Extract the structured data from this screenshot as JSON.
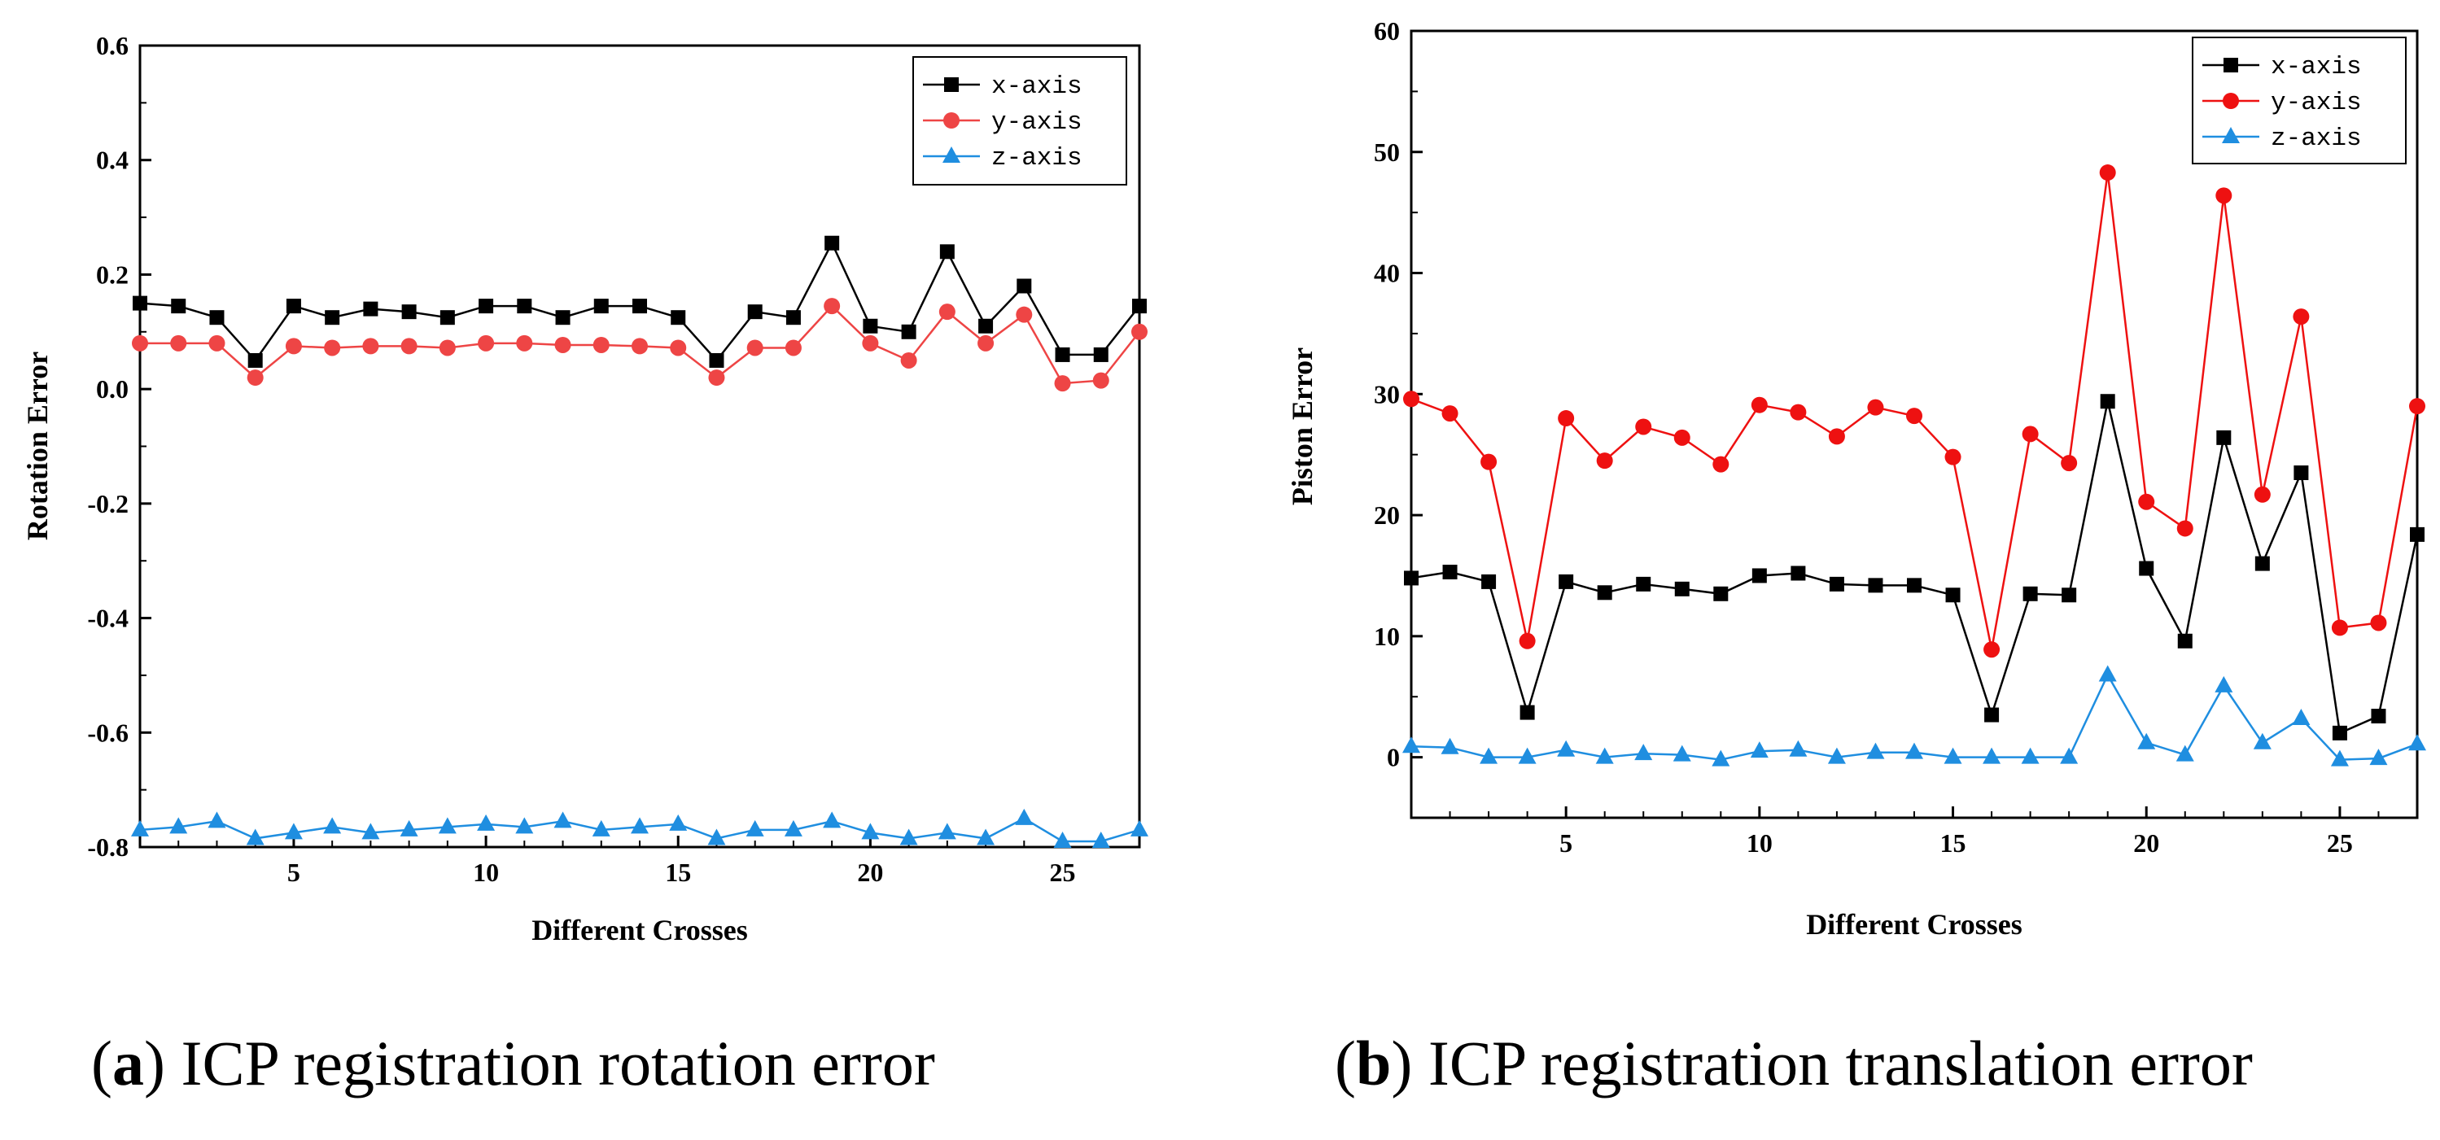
{
  "chart_data": [
    {
      "type": "line",
      "caption_letter": "a",
      "caption_text": "ICP registration rotation error",
      "xlabel": "Different Crosses",
      "ylabel": "Rotation Error",
      "xlim": [
        1,
        27
      ],
      "ylim": [
        -0.8,
        0.6
      ],
      "xticks": [
        5,
        10,
        15,
        20,
        25
      ],
      "yticks": [
        -0.8,
        -0.6,
        -0.4,
        -0.2,
        0.0,
        0.2,
        0.4,
        0.6
      ],
      "ytick_labels": [
        "-0.8",
        "-0.6",
        "-0.4",
        "-0.2",
        "0.0",
        "0.2",
        "0.4",
        "0.6"
      ],
      "legend_position": "top-right",
      "x": [
        1,
        2,
        3,
        4,
        5,
        6,
        7,
        8,
        9,
        10,
        11,
        12,
        13,
        14,
        15,
        16,
        17,
        18,
        19,
        20,
        21,
        22,
        23,
        24,
        25,
        26,
        27
      ],
      "series": [
        {
          "name": "x-axis",
          "color": "#000000",
          "marker": "square",
          "values": [
            0.15,
            0.145,
            0.125,
            0.05,
            0.145,
            0.125,
            0.14,
            0.135,
            0.125,
            0.145,
            0.145,
            0.125,
            0.145,
            0.145,
            0.125,
            0.05,
            0.135,
            0.125,
            0.255,
            0.11,
            0.1,
            0.24,
            0.11,
            0.18,
            0.06,
            0.06,
            0.145
          ]
        },
        {
          "name": "y-axis",
          "color": "#ee4545",
          "marker": "circle",
          "values": [
            0.08,
            0.08,
            0.08,
            0.02,
            0.075,
            0.072,
            0.075,
            0.075,
            0.072,
            0.08,
            0.08,
            0.077,
            0.077,
            0.075,
            0.072,
            0.02,
            0.072,
            0.072,
            0.145,
            0.08,
            0.05,
            0.135,
            0.08,
            0.13,
            0.01,
            0.015,
            0.1
          ]
        },
        {
          "name": "z-axis",
          "color": "#1f8ee0",
          "marker": "triangle",
          "values": [
            -0.77,
            -0.765,
            -0.755,
            -0.785,
            -0.775,
            -0.765,
            -0.775,
            -0.77,
            -0.765,
            -0.76,
            -0.765,
            -0.755,
            -0.77,
            -0.765,
            -0.76,
            -0.785,
            -0.77,
            -0.77,
            -0.755,
            -0.775,
            -0.785,
            -0.775,
            -0.785,
            -0.75,
            -0.79,
            -0.79,
            -0.77
          ]
        }
      ]
    },
    {
      "type": "line",
      "caption_letter": "b",
      "caption_text": "ICP registration translation error",
      "xlabel": "Different Crosses",
      "ylabel": "Piston Error",
      "xlim": [
        1,
        27
      ],
      "ylim": [
        -5,
        60
      ],
      "xticks": [
        5,
        10,
        15,
        20,
        25
      ],
      "yticks": [
        0,
        10,
        20,
        30,
        40,
        50,
        60
      ],
      "ytick_labels": [
        "0",
        "10",
        "20",
        "30",
        "40",
        "50",
        "60"
      ],
      "legend_position": "top-right",
      "x": [
        1,
        2,
        3,
        4,
        5,
        6,
        7,
        8,
        9,
        10,
        11,
        12,
        13,
        14,
        15,
        16,
        17,
        18,
        19,
        20,
        21,
        22,
        23,
        24,
        25,
        26,
        27
      ],
      "series": [
        {
          "name": "x-axis",
          "color": "#000000",
          "marker": "square",
          "values": [
            14.8,
            15.3,
            14.5,
            3.7,
            14.5,
            13.6,
            14.3,
            13.9,
            13.5,
            15.0,
            15.2,
            14.3,
            14.2,
            14.2,
            13.4,
            3.5,
            13.5,
            13.4,
            29.4,
            15.6,
            9.6,
            26.4,
            16.0,
            23.5,
            2.0,
            3.4,
            18.4
          ]
        },
        {
          "name": "y-axis",
          "color": "#ee1111",
          "marker": "circle",
          "values": [
            29.6,
            28.4,
            24.4,
            9.6,
            28.0,
            24.5,
            27.3,
            26.4,
            24.2,
            29.1,
            28.5,
            26.5,
            28.9,
            28.2,
            24.8,
            8.9,
            26.7,
            24.3,
            48.3,
            21.1,
            18.9,
            46.4,
            21.7,
            36.4,
            10.7,
            11.1,
            29.0
          ]
        },
        {
          "name": "z-axis",
          "color": "#1f8ee0",
          "marker": "triangle",
          "values": [
            0.9,
            0.8,
            0.0,
            0.0,
            0.6,
            0.0,
            0.3,
            0.2,
            -0.2,
            0.5,
            0.6,
            0.0,
            0.4,
            0.4,
            0.0,
            0.0,
            0.0,
            0.0,
            6.8,
            1.2,
            0.2,
            5.9,
            1.2,
            3.2,
            -0.2,
            -0.1,
            1.1
          ]
        }
      ]
    }
  ]
}
